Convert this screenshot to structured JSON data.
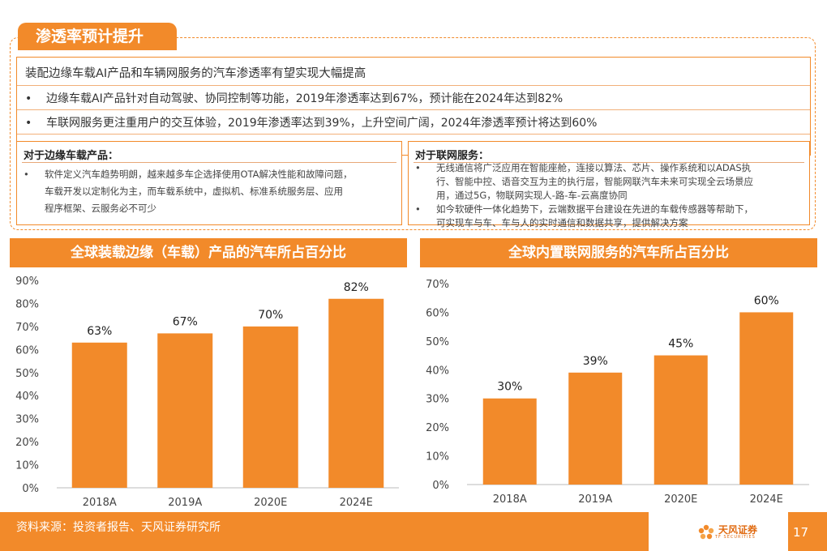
{
  "header": {
    "title": "渗透率预计提升"
  },
  "summary": {
    "title": "装配边缘车载AI产品和车辆网服务的汽车渗透率有望实现大幅提高",
    "bullets": [
      "边缘车载AI产品针对自动驾驶、协同控制等功能，2019年渗透率达到67%，预计能在2024年达到82%",
      "车联网服务更注重用户的交互体验，2019年渗透率达到39%，上升空间广阔，2024年渗透率预计将达到60%"
    ],
    "bullet_marker": "•"
  },
  "edge_box": {
    "heading": "对于边缘车载产品",
    "colon": "：",
    "lines": [
      "软件定义汽车趋势明朗，越来越多车企选择使用OTA解决性能和故障问题，",
      "车载开发以定制化为主，而车载系统中，虚拟机、标准系统服务层、应用",
      "程序框架、云服务必不可少"
    ]
  },
  "network_box": {
    "heading": "对于联网服务",
    "colon": "：",
    "bullet1_lines": [
      "无线通信将广泛应用在智能座舱，连接以算法、芯片、操作系统和以ADAS执",
      "行、智能中控、语音交互为主的执行层，智能网联汽车未来可实现全云场景应",
      "用，通过5G，物联网实现人-路-车-云高度协同"
    ],
    "bullet2_lines": [
      "如今软硬件一体化趋势下，云端数据平台建设在先进的车载传感器等帮助下，",
      "可实现车与车、车与人的实时通信和数据共享，提供解决方案"
    ]
  },
  "chart_data": [
    {
      "type": "bar",
      "title": "全球装载边缘（车载）产品的汽车所占百分比",
      "categories": [
        "2018A",
        "2019A",
        "2020E",
        "2024E"
      ],
      "values": [
        63,
        67,
        70,
        82
      ],
      "value_labels": [
        "63%",
        "67%",
        "70%",
        "82%"
      ],
      "ylim": [
        0,
        90
      ],
      "yticks": [
        "0%",
        "10%",
        "20%",
        "30%",
        "40%",
        "50%",
        "60%",
        "70%",
        "80%",
        "90%"
      ],
      "grid": false,
      "bar_color": "#f28a2a"
    },
    {
      "type": "bar",
      "title": "全球内置联网服务的汽车所占百分比",
      "categories": [
        "2018A",
        "2019A",
        "2020E",
        "2024E"
      ],
      "values": [
        30,
        39,
        45,
        60
      ],
      "value_labels": [
        "30%",
        "39%",
        "45%",
        "60%"
      ],
      "ylim": [
        0,
        70
      ],
      "yticks": [
        "0%",
        "10%",
        "20%",
        "30%",
        "40%",
        "50%",
        "60%",
        "70%"
      ],
      "grid": false,
      "bar_color": "#f28a2a"
    }
  ],
  "footer": {
    "source": "资料来源：投资者报告、天风证券研究所",
    "logo_text": "天风证券",
    "logo_sub": "TF SECURITIES",
    "page": "17"
  },
  "colors": {
    "accent": "#f28a2a"
  }
}
